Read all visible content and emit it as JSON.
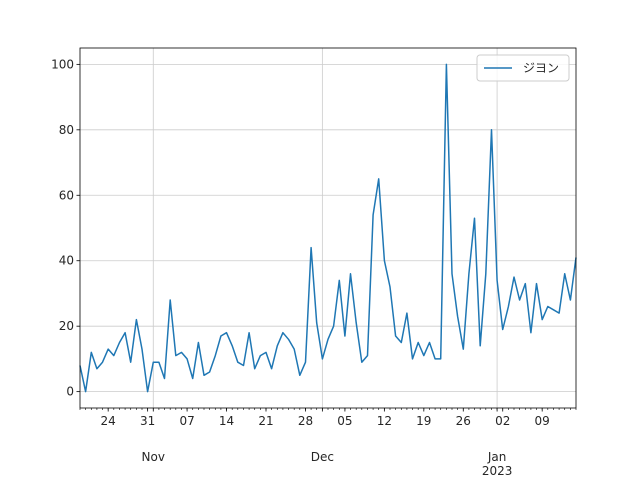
{
  "chart_data": {
    "type": "line",
    "title": "",
    "xlabel": "",
    "ylabel": "",
    "x_start": "2022-10-19",
    "x_end": "2023-01-15",
    "xlim": [
      "2022-10-19",
      "2023-01-15"
    ],
    "ylim": [
      -5,
      105
    ],
    "yticks": [
      0,
      20,
      40,
      60,
      80,
      100
    ],
    "xticks_minor_labels": [
      {
        "date": "2022-10-24",
        "label": "24"
      },
      {
        "date": "2022-10-31",
        "label": "31"
      },
      {
        "date": "2022-11-07",
        "label": "07"
      },
      {
        "date": "2022-11-14",
        "label": "14"
      },
      {
        "date": "2022-11-21",
        "label": "21"
      },
      {
        "date": "2022-11-28",
        "label": "28"
      },
      {
        "date": "2022-12-05",
        "label": "05"
      },
      {
        "date": "2022-12-12",
        "label": "12"
      },
      {
        "date": "2022-12-19",
        "label": "19"
      },
      {
        "date": "2022-12-26",
        "label": "26"
      },
      {
        "date": "2023-01-02",
        "label": "02"
      },
      {
        "date": "2023-01-09",
        "label": "09"
      }
    ],
    "xticks_major_labels": [
      {
        "date": "2022-11-01",
        "label": "Nov"
      },
      {
        "date": "2022-12-01",
        "label": "Dec"
      },
      {
        "date": "2023-01-01",
        "label": "Jan\n2023"
      }
    ],
    "grid": true,
    "legend_position": "top-right",
    "series": [
      {
        "name": "ジヨン",
        "color": "#1f77b4",
        "values": [
          8,
          0,
          12,
          7,
          9,
          13,
          11,
          15,
          18,
          9,
          22,
          13,
          0,
          9,
          9,
          4,
          28,
          11,
          12,
          10,
          4,
          15,
          5,
          6,
          11,
          17,
          18,
          14,
          9,
          8,
          18,
          7,
          11,
          12,
          7,
          14,
          18,
          16,
          13,
          5,
          9,
          44,
          21,
          10,
          16,
          20,
          34,
          17,
          36,
          21,
          9,
          11,
          54,
          65,
          40,
          32,
          17,
          15,
          24,
          10,
          15,
          11,
          15,
          10,
          10,
          100,
          36,
          23,
          13,
          36,
          53,
          14,
          36,
          80,
          34,
          19,
          26,
          35,
          28,
          33,
          18,
          33,
          22,
          26,
          25,
          24,
          36,
          28,
          41
        ]
      }
    ]
  }
}
